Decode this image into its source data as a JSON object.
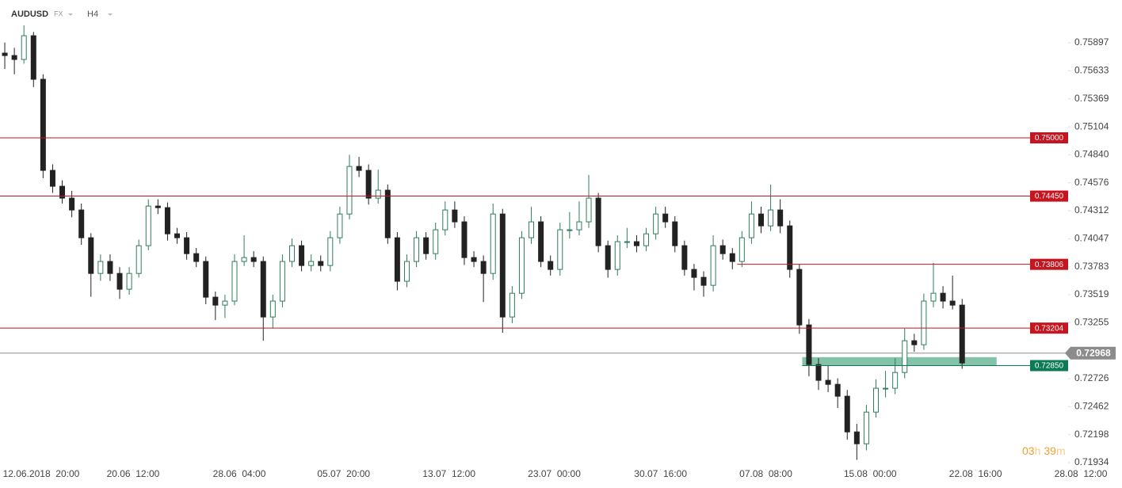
{
  "chart_data": {
    "type": "candlestick",
    "symbol": "AUDUSD",
    "market": "FX",
    "timeframe": "H4",
    "timer": {
      "hours": "03",
      "hours_unit": "h",
      "minutes": "39",
      "minutes_unit": "m"
    },
    "up_color": "#2e7d5b",
    "down_color": "#222222",
    "xlim": [
      -0.5,
      116.7
    ],
    "ylim": [
      0.71874,
      0.76077
    ],
    "yticks": [
      {
        "value": 0.75897,
        "label": "0.75897"
      },
      {
        "value": 0.75633,
        "label": "0.75633"
      },
      {
        "value": 0.75369,
        "label": "0.75369"
      },
      {
        "value": 0.75104,
        "label": "0.75104"
      },
      {
        "value": 0.7484,
        "label": "0.74840"
      },
      {
        "value": 0.74576,
        "label": "0.74576"
      },
      {
        "value": 0.74312,
        "label": "0.74312"
      },
      {
        "value": 0.74047,
        "label": "0.74047"
      },
      {
        "value": 0.73783,
        "label": "0.73783"
      },
      {
        "value": 0.73519,
        "label": "0.73519"
      },
      {
        "value": 0.73255,
        "label": "0.73255"
      },
      {
        "value": 0.72726,
        "label": "0.72726"
      },
      {
        "value": 0.72462,
        "label": "0.72462"
      },
      {
        "value": 0.72198,
        "label": "0.72198"
      },
      {
        "value": 0.71934,
        "label": "0.71934"
      }
    ],
    "xticks": [
      {
        "value": 3.8,
        "label": "12.06.2018  20:00"
      },
      {
        "value": 13.4,
        "label": "20.06  12:00"
      },
      {
        "value": 24.5,
        "label": "28.06  04:00"
      },
      {
        "value": 35.4,
        "label": "05.07  20:00"
      },
      {
        "value": 46.4,
        "label": "13.07  12:00"
      },
      {
        "value": 57.4,
        "label": "23.07  00:00"
      },
      {
        "value": 68.5,
        "label": "30.07  16:00"
      },
      {
        "value": 79.5,
        "label": "07.08  08:00"
      },
      {
        "value": 90.4,
        "label": "15.08  00:00"
      },
      {
        "value": 101.4,
        "label": "22.08  16:00"
      },
      {
        "value": 112.4,
        "label": "28.08  12:00"
      }
    ],
    "levels": [
      {
        "value": 0.75,
        "label": "0.75000",
        "color": "#c8141e",
        "x_start": -0.5
      },
      {
        "value": 0.7445,
        "label": "0.74450",
        "color": "#c8141e",
        "x_start": -0.5
      },
      {
        "value": 0.73806,
        "label": "0.73806",
        "color": "#c8141e",
        "x_start": 76.5
      },
      {
        "value": 0.73204,
        "label": "0.73204",
        "color": "#c8141e",
        "x_start": -0.5
      },
      {
        "value": 0.7285,
        "label": "0.72850",
        "color": "#0b7a55",
        "x_start": 83.3
      }
    ],
    "zone": {
      "low": 0.7285,
      "high": 0.7293,
      "x_start": 83.3,
      "x_end": 103.6,
      "color": "#6fb99a"
    },
    "current_price": {
      "value": 0.72968,
      "label": "0.72968",
      "color": "#8c8c8c"
    },
    "x": [
      0,
      1,
      2,
      3,
      4,
      5,
      6,
      7,
      8,
      9,
      10,
      11,
      12,
      13,
      14,
      15,
      16,
      17,
      18,
      19,
      20,
      21,
      22,
      23,
      24,
      25,
      26,
      27,
      28,
      29,
      30,
      31,
      32,
      33,
      34,
      35,
      36,
      37,
      38,
      39,
      40,
      41,
      42,
      43,
      44,
      45,
      46,
      47,
      48,
      49,
      50,
      51,
      52,
      53,
      54,
      55,
      56,
      57,
      58,
      59,
      60,
      61,
      62,
      63,
      64,
      65,
      66,
      67,
      68,
      69,
      70,
      71,
      72,
      73,
      74,
      75,
      76,
      77,
      78,
      79,
      80,
      81,
      82,
      83,
      84,
      85,
      86,
      87,
      88,
      89,
      90,
      91,
      92,
      93,
      94,
      95,
      96,
      97,
      98,
      99,
      100
    ],
    "candles": [
      [
        0.758,
        0.759,
        0.7565,
        0.75777
      ],
      [
        0.75777,
        0.7585,
        0.756,
        0.7574
      ],
      [
        0.7574,
        0.76062,
        0.757,
        0.75964
      ],
      [
        0.75964,
        0.76,
        0.7548,
        0.75553
      ],
      [
        0.75553,
        0.756,
        0.7462,
        0.74693
      ],
      [
        0.74693,
        0.7475,
        0.7448,
        0.74543
      ],
      [
        0.74543,
        0.746,
        0.7438,
        0.74431
      ],
      [
        0.74431,
        0.745,
        0.7425,
        0.74319
      ],
      [
        0.74319,
        0.7438,
        0.7399,
        0.74057
      ],
      [
        0.74057,
        0.741,
        0.735,
        0.7372
      ],
      [
        0.7372,
        0.739,
        0.7365,
        0.73833
      ],
      [
        0.73833,
        0.739,
        0.7365,
        0.7372
      ],
      [
        0.7372,
        0.7378,
        0.7348,
        0.73571
      ],
      [
        0.73571,
        0.7378,
        0.7352,
        0.7372
      ],
      [
        0.7372,
        0.7404,
        0.7368,
        0.73982
      ],
      [
        0.73982,
        0.7442,
        0.7394,
        0.74356
      ],
      [
        0.74356,
        0.7442,
        0.7428,
        0.74341
      ],
      [
        0.74341,
        0.7439,
        0.7403,
        0.74094
      ],
      [
        0.74094,
        0.7415,
        0.74,
        0.74057
      ],
      [
        0.74057,
        0.7411,
        0.7385,
        0.73907
      ],
      [
        0.73907,
        0.7396,
        0.7378,
        0.73833
      ],
      [
        0.73833,
        0.7388,
        0.7343,
        0.73496
      ],
      [
        0.73496,
        0.7355,
        0.7328,
        0.73421
      ],
      [
        0.73421,
        0.7352,
        0.733,
        0.73459
      ],
      [
        0.73459,
        0.739,
        0.7342,
        0.73833
      ],
      [
        0.73833,
        0.7408,
        0.7379,
        0.7387
      ],
      [
        0.7387,
        0.7393,
        0.7378,
        0.73833
      ],
      [
        0.73833,
        0.7388,
        0.73085,
        0.73309
      ],
      [
        0.73309,
        0.7352,
        0.732,
        0.73459
      ],
      [
        0.73459,
        0.739,
        0.734,
        0.73833
      ],
      [
        0.73833,
        0.7405,
        0.7378,
        0.73982
      ],
      [
        0.73982,
        0.7403,
        0.7374,
        0.73795
      ],
      [
        0.73795,
        0.739,
        0.7374,
        0.73833
      ],
      [
        0.73833,
        0.7389,
        0.7374,
        0.73795
      ],
      [
        0.73795,
        0.7412,
        0.7374,
        0.74057
      ],
      [
        0.74057,
        0.7435,
        0.74,
        0.74281
      ],
      [
        0.74281,
        0.7484,
        0.7423,
        0.7473
      ],
      [
        0.7473,
        0.7482,
        0.7463,
        0.74693
      ],
      [
        0.74693,
        0.7475,
        0.7437,
        0.74431
      ],
      [
        0.74431,
        0.747,
        0.7438,
        0.74506
      ],
      [
        0.74506,
        0.7456,
        0.74,
        0.74057
      ],
      [
        0.74057,
        0.7411,
        0.7356,
        0.73646
      ],
      [
        0.73646,
        0.739,
        0.7359,
        0.73833
      ],
      [
        0.73833,
        0.7412,
        0.7378,
        0.74057
      ],
      [
        0.74057,
        0.7411,
        0.7385,
        0.73907
      ],
      [
        0.73907,
        0.742,
        0.7385,
        0.74132
      ],
      [
        0.74132,
        0.744,
        0.7408,
        0.74319
      ],
      [
        0.74319,
        0.744,
        0.7415,
        0.74207
      ],
      [
        0.74207,
        0.7426,
        0.738,
        0.7387
      ],
      [
        0.7387,
        0.7393,
        0.7378,
        0.73833
      ],
      [
        0.73833,
        0.7389,
        0.7345,
        0.7372
      ],
      [
        0.7372,
        0.7438,
        0.7366,
        0.74281
      ],
      [
        0.74281,
        0.7433,
        0.7316,
        0.73309
      ],
      [
        0.73309,
        0.736,
        0.7325,
        0.73533
      ],
      [
        0.73533,
        0.7412,
        0.7348,
        0.74057
      ],
      [
        0.74057,
        0.7435,
        0.74,
        0.74207
      ],
      [
        0.74207,
        0.7426,
        0.7378,
        0.73833
      ],
      [
        0.73833,
        0.7389,
        0.737,
        0.73758
      ],
      [
        0.73758,
        0.742,
        0.737,
        0.74132
      ],
      [
        0.74132,
        0.743,
        0.7405,
        0.74132
      ],
      [
        0.74132,
        0.744,
        0.7408,
        0.74207
      ],
      [
        0.74207,
        0.7465,
        0.7415,
        0.74431
      ],
      [
        0.74431,
        0.7448,
        0.7392,
        0.73982
      ],
      [
        0.73982,
        0.7403,
        0.7368,
        0.73758
      ],
      [
        0.73758,
        0.7408,
        0.737,
        0.7402
      ],
      [
        0.7402,
        0.7415,
        0.7396,
        0.7402
      ],
      [
        0.7402,
        0.7408,
        0.7392,
        0.73982
      ],
      [
        0.73982,
        0.7415,
        0.7393,
        0.74094
      ],
      [
        0.74094,
        0.7435,
        0.7404,
        0.74281
      ],
      [
        0.74281,
        0.7435,
        0.7415,
        0.74207
      ],
      [
        0.74207,
        0.7426,
        0.7392,
        0.73982
      ],
      [
        0.73982,
        0.7403,
        0.737,
        0.73758
      ],
      [
        0.73758,
        0.7381,
        0.7356,
        0.73683
      ],
      [
        0.73683,
        0.7374,
        0.735,
        0.73608
      ],
      [
        0.73608,
        0.7408,
        0.7355,
        0.73982
      ],
      [
        0.73982,
        0.7404,
        0.7385,
        0.73907
      ],
      [
        0.73907,
        0.7396,
        0.7376,
        0.73833
      ],
      [
        0.73833,
        0.7412,
        0.7378,
        0.74057
      ],
      [
        0.74057,
        0.744,
        0.74,
        0.74281
      ],
      [
        0.74281,
        0.7435,
        0.741,
        0.74169
      ],
      [
        0.74169,
        0.7456,
        0.7412,
        0.74319
      ],
      [
        0.74319,
        0.7442,
        0.741,
        0.74169
      ],
      [
        0.74169,
        0.7422,
        0.7368,
        0.73758
      ],
      [
        0.73758,
        0.7381,
        0.7315,
        0.73234
      ],
      [
        0.73234,
        0.7329,
        0.7275,
        0.7286
      ],
      [
        0.7286,
        0.7292,
        0.7262,
        0.72711
      ],
      [
        0.72711,
        0.7285,
        0.726,
        0.72673
      ],
      [
        0.72673,
        0.7273,
        0.7245,
        0.72561
      ],
      [
        0.72561,
        0.7262,
        0.7215,
        0.72224
      ],
      [
        0.72224,
        0.723,
        0.7196,
        0.72112
      ],
      [
        0.72112,
        0.7248,
        0.7205,
        0.72411
      ],
      [
        0.72411,
        0.7272,
        0.7236,
        0.72636
      ],
      [
        0.72636,
        0.728,
        0.7255,
        0.72636
      ],
      [
        0.72636,
        0.7292,
        0.7258,
        0.72785
      ],
      [
        0.72785,
        0.732,
        0.7273,
        0.73085
      ],
      [
        0.73085,
        0.7315,
        0.7298,
        0.73047
      ],
      [
        0.73047,
        0.7353,
        0.73,
        0.73459
      ],
      [
        0.73459,
        0.7382,
        0.734,
        0.73533
      ],
      [
        0.73533,
        0.736,
        0.7339,
        0.73459
      ],
      [
        0.73459,
        0.737,
        0.7338,
        0.73421
      ],
      [
        0.73421,
        0.7348,
        0.7282,
        0.72875
      ]
    ]
  }
}
